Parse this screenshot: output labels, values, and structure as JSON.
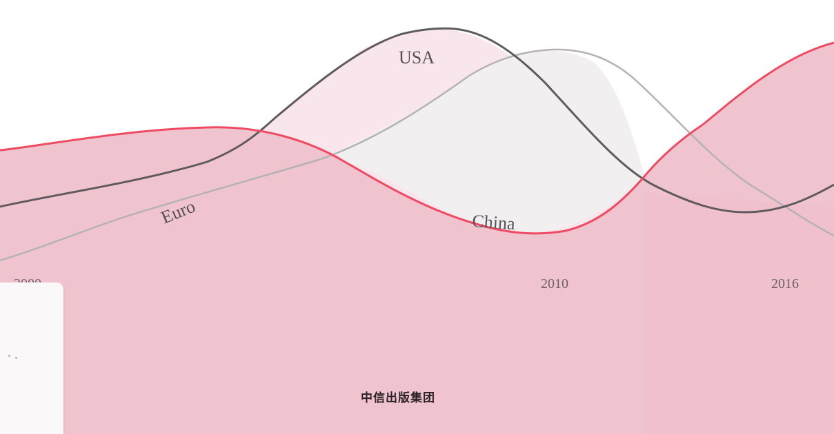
{
  "series": {
    "usa": {
      "label": "USA",
      "color": "#5e5a5e"
    },
    "euro": {
      "label": "Euro",
      "color": "#b5b2b4"
    },
    "china": {
      "label": "China",
      "color": "#ee4b62"
    }
  },
  "axis_years": [
    "2000",
    "2010",
    "2016"
  ],
  "publisher": "中信出版集团",
  "colors": {
    "band_dark": "#f0c4cf",
    "band_light": "#f8e6ec",
    "overlap_grey": "#f1eff0",
    "background": "#ffffff"
  }
}
